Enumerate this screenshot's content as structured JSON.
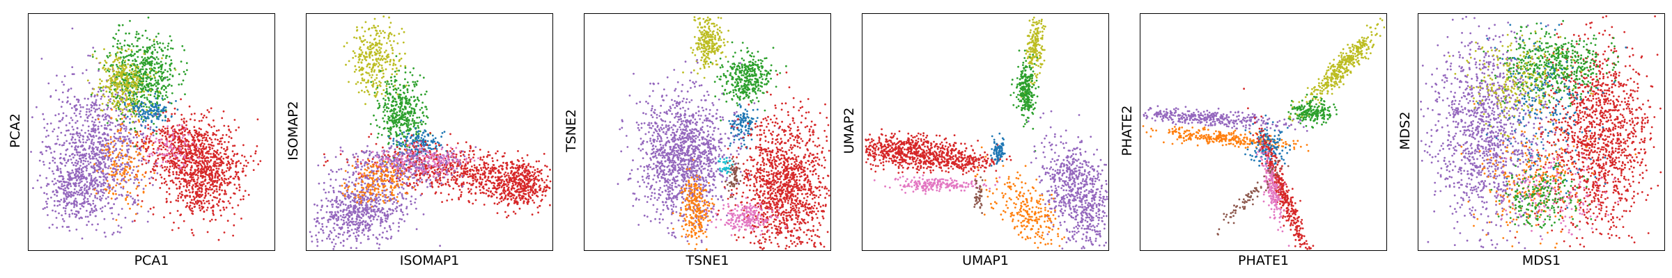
{
  "colors": {
    "c0": "#d62728",
    "c1": "#9467bd",
    "c2": "#2ca02c",
    "c3": "#bcbd22",
    "c4": "#1f77b4",
    "c5": "#ff7f0e",
    "c6": "#e377c2",
    "c7": "#8c564b",
    "c8": "#17becf"
  },
  "chart_data": [
    {
      "type": "scatter",
      "xlabel": "PCA1",
      "ylabel": "PCA2",
      "ticks": "none",
      "grid": false,
      "clusters": [
        {
          "color": "c1",
          "n": 900,
          "cx": 0.28,
          "cy": 0.57,
          "sx": 0.1,
          "sy": 0.15
        },
        {
          "color": "c1",
          "n": 300,
          "cx": 0.18,
          "cy": 0.72,
          "sx": 0.06,
          "sy": 0.08
        },
        {
          "color": "c0",
          "n": 900,
          "cx": 0.7,
          "cy": 0.66,
          "sx": 0.08,
          "sy": 0.1
        },
        {
          "color": "c0",
          "n": 300,
          "cx": 0.58,
          "cy": 0.55,
          "sx": 0.07,
          "sy": 0.06
        },
        {
          "color": "c2",
          "n": 600,
          "cx": 0.46,
          "cy": 0.26,
          "sx": 0.07,
          "sy": 0.09
        },
        {
          "color": "c3",
          "n": 300,
          "cx": 0.38,
          "cy": 0.29,
          "sx": 0.05,
          "sy": 0.06
        },
        {
          "color": "c4",
          "n": 120,
          "cx": 0.5,
          "cy": 0.41,
          "sx": 0.04,
          "sy": 0.03
        },
        {
          "color": "c5",
          "n": 150,
          "cx": 0.38,
          "cy": 0.62,
          "sx": 0.05,
          "sy": 0.1
        },
        {
          "color": "c6",
          "n": 80,
          "cx": 0.58,
          "cy": 0.56,
          "sx": 0.05,
          "sy": 0.04
        }
      ]
    },
    {
      "type": "scatter",
      "xlabel": "ISOMAP1",
      "ylabel": "ISOMAP2",
      "ticks": "none",
      "grid": false,
      "clusters": [
        {
          "color": "c3",
          "n": 300,
          "cx": 0.28,
          "cy": 0.19,
          "sx": 0.05,
          "sy": 0.08
        },
        {
          "color": "c2",
          "n": 400,
          "cx": 0.38,
          "cy": 0.41,
          "sx": 0.05,
          "sy": 0.07
        },
        {
          "color": "c4",
          "n": 150,
          "cx": 0.46,
          "cy": 0.55,
          "sx": 0.05,
          "sy": 0.03
        },
        {
          "color": "c0",
          "n": 700,
          "cx": 0.62,
          "cy": 0.66,
          "sx": 0.18,
          "sy": 0.05,
          "rot": 0.15
        },
        {
          "color": "c0",
          "n": 400,
          "cx": 0.85,
          "cy": 0.72,
          "sx": 0.07,
          "sy": 0.05
        },
        {
          "color": "c1",
          "n": 700,
          "cx": 0.22,
          "cy": 0.82,
          "sx": 0.1,
          "sy": 0.07,
          "rot": -0.55
        },
        {
          "color": "c1",
          "n": 300,
          "cx": 0.4,
          "cy": 0.63,
          "sx": 0.12,
          "sy": 0.04
        },
        {
          "color": "c5",
          "n": 200,
          "cx": 0.28,
          "cy": 0.7,
          "sx": 0.06,
          "sy": 0.05,
          "rot": -0.5
        },
        {
          "color": "c6",
          "n": 150,
          "cx": 0.47,
          "cy": 0.62,
          "sx": 0.1,
          "sy": 0.03
        }
      ]
    },
    {
      "type": "scatter",
      "xlabel": "TSNE1",
      "ylabel": "TSNE2",
      "ticks": "none",
      "grid": false,
      "clusters": [
        {
          "color": "c3",
          "n": 250,
          "cx": 0.5,
          "cy": 0.12,
          "sx": 0.03,
          "sy": 0.06
        },
        {
          "color": "c2",
          "n": 350,
          "cx": 0.65,
          "cy": 0.27,
          "sx": 0.05,
          "sy": 0.05
        },
        {
          "color": "c4",
          "n": 120,
          "cx": 0.64,
          "cy": 0.47,
          "sx": 0.025,
          "sy": 0.04
        },
        {
          "color": "c1",
          "n": 1300,
          "cx": 0.4,
          "cy": 0.6,
          "sx": 0.09,
          "sy": 0.13
        },
        {
          "color": "c0",
          "n": 1300,
          "cx": 0.81,
          "cy": 0.72,
          "sx": 0.09,
          "sy": 0.14
        },
        {
          "color": "c5",
          "n": 250,
          "cx": 0.45,
          "cy": 0.82,
          "sx": 0.03,
          "sy": 0.07
        },
        {
          "color": "c6",
          "n": 200,
          "cx": 0.65,
          "cy": 0.86,
          "sx": 0.05,
          "sy": 0.03
        },
        {
          "color": "c7",
          "n": 60,
          "cx": 0.6,
          "cy": 0.68,
          "sx": 0.015,
          "sy": 0.04
        },
        {
          "color": "c8",
          "n": 30,
          "cx": 0.57,
          "cy": 0.64,
          "sx": 0.015,
          "sy": 0.02
        }
      ]
    },
    {
      "type": "scatter",
      "xlabel": "UMAP1",
      "ylabel": "UMAP2",
      "ticks": "none",
      "grid": false,
      "clusters": [
        {
          "color": "c3",
          "n": 200,
          "cx": 0.7,
          "cy": 0.13,
          "sx": 0.015,
          "sy": 0.07,
          "rot": 0.1
        },
        {
          "color": "c2",
          "n": 250,
          "cx": 0.66,
          "cy": 0.32,
          "sx": 0.02,
          "sy": 0.06
        },
        {
          "color": "c0",
          "n": 700,
          "cx": 0.18,
          "cy": 0.58,
          "sx": 0.12,
          "sy": 0.035,
          "rot": 0.05
        },
        {
          "color": "c0",
          "n": 200,
          "cx": 0.4,
          "cy": 0.62,
          "sx": 0.07,
          "sy": 0.02
        },
        {
          "color": "c4",
          "n": 80,
          "cx": 0.55,
          "cy": 0.58,
          "sx": 0.015,
          "sy": 0.03
        },
        {
          "color": "c6",
          "n": 200,
          "cx": 0.3,
          "cy": 0.72,
          "sx": 0.09,
          "sy": 0.015
        },
        {
          "color": "c1",
          "n": 700,
          "cx": 0.87,
          "cy": 0.76,
          "sx": 0.06,
          "sy": 0.12,
          "rot": -0.4
        },
        {
          "color": "c5",
          "n": 250,
          "cx": 0.66,
          "cy": 0.82,
          "sx": 0.05,
          "sy": 0.1,
          "rot": -0.7
        },
        {
          "color": "c7",
          "n": 40,
          "cx": 0.47,
          "cy": 0.76,
          "sx": 0.01,
          "sy": 0.04
        }
      ]
    },
    {
      "type": "scatter",
      "xlabel": "PHATE1",
      "ylabel": "PHATE2",
      "ticks": "none",
      "grid": false,
      "clusters": [
        {
          "color": "c3",
          "n": 400,
          "cx": 0.82,
          "cy": 0.22,
          "sx": 0.11,
          "sy": 0.02,
          "rot": -0.85
        },
        {
          "color": "c2",
          "n": 200,
          "cx": 0.69,
          "cy": 0.41,
          "sx": 0.04,
          "sy": 0.025
        },
        {
          "color": "c1",
          "n": 350,
          "cx": 0.28,
          "cy": 0.44,
          "sx": 0.16,
          "sy": 0.015,
          "rot": 0.08
        },
        {
          "color": "c5",
          "n": 300,
          "cx": 0.32,
          "cy": 0.52,
          "sx": 0.15,
          "sy": 0.015,
          "rot": 0.1
        },
        {
          "color": "c4",
          "n": 150,
          "cx": 0.52,
          "cy": 0.56,
          "sx": 0.04,
          "sy": 0.04
        },
        {
          "color": "c0",
          "n": 400,
          "cx": 0.58,
          "cy": 0.76,
          "sx": 0.015,
          "sy": 0.14,
          "rot": -0.35
        },
        {
          "color": "c6",
          "n": 180,
          "cx": 0.53,
          "cy": 0.72,
          "sx": 0.015,
          "sy": 0.08,
          "rot": -0.2
        },
        {
          "color": "c7",
          "n": 80,
          "cx": 0.45,
          "cy": 0.76,
          "sx": 0.015,
          "sy": 0.09,
          "rot": 0.7
        }
      ]
    },
    {
      "type": "scatter",
      "xlabel": "MDS1",
      "ylabel": "MDS2",
      "ticks": "none",
      "grid": false,
      "clusters": [
        {
          "color": "c1",
          "n": 1200,
          "cx": 0.27,
          "cy": 0.5,
          "sx": 0.11,
          "sy": 0.2
        },
        {
          "color": "c0",
          "n": 1300,
          "cx": 0.73,
          "cy": 0.52,
          "sx": 0.1,
          "sy": 0.2
        },
        {
          "color": "c2",
          "n": 500,
          "cx": 0.55,
          "cy": 0.22,
          "sx": 0.1,
          "sy": 0.07
        },
        {
          "color": "c3",
          "n": 250,
          "cx": 0.4,
          "cy": 0.28,
          "sx": 0.1,
          "sy": 0.09
        },
        {
          "color": "c4",
          "n": 200,
          "cx": 0.52,
          "cy": 0.4,
          "sx": 0.1,
          "sy": 0.15
        },
        {
          "color": "c5",
          "n": 250,
          "cx": 0.45,
          "cy": 0.7,
          "sx": 0.1,
          "sy": 0.12
        },
        {
          "color": "c6",
          "n": 150,
          "cx": 0.55,
          "cy": 0.75,
          "sx": 0.1,
          "sy": 0.08
        },
        {
          "color": "c2",
          "n": 200,
          "cx": 0.5,
          "cy": 0.78,
          "sx": 0.08,
          "sy": 0.06
        }
      ]
    }
  ]
}
